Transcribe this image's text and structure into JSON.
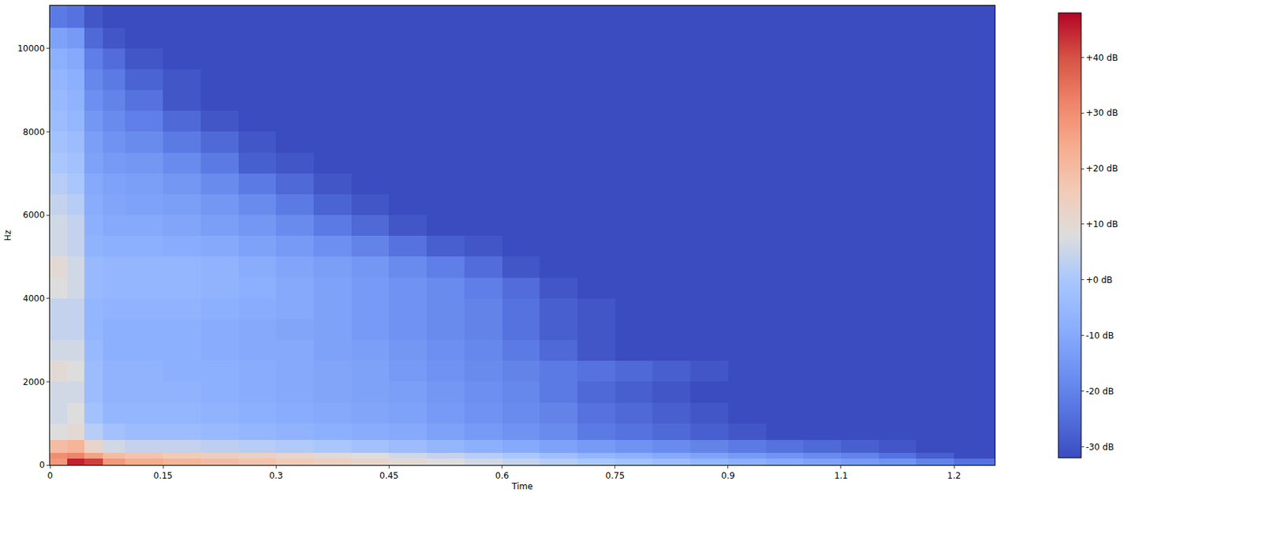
{
  "chart_data": {
    "type": "heatmap",
    "x_label": "Time",
    "y_label": "Hz",
    "xlim": [
      0,
      1.254
    ],
    "ylim": [
      0,
      11025
    ],
    "xticks": [
      0,
      0.15,
      0.3,
      0.45,
      0.6,
      0.75,
      0.9,
      {
        "value": 1.05,
        "label": "1.1"
      },
      1.2
    ],
    "yticks": [
      0,
      2000,
      4000,
      6000,
      8000,
      10000
    ],
    "time_edges": [
      0,
      0.023,
      0.046,
      0.07,
      0.1,
      0.15,
      0.2,
      0.25,
      0.3,
      0.35,
      0.4,
      0.45,
      0.5,
      0.55,
      0.6,
      0.65,
      0.7,
      0.75,
      0.8,
      0.85,
      0.9,
      0.95,
      1.0,
      1.05,
      1.1,
      1.15,
      1.2,
      1.254
    ],
    "freq_edges": [
      0,
      150,
      300,
      600,
      1000,
      1500,
      2000,
      2500,
      3000,
      3500,
      4000,
      4500,
      5000,
      5500,
      6000,
      6500,
      7000,
      7500,
      8000,
      8500,
      9000,
      9500,
      10000,
      10500,
      11025
    ],
    "cells": [
      [
        28,
        45,
        42,
        28,
        24,
        22,
        20,
        18,
        16,
        14,
        12,
        10,
        8,
        6,
        4,
        2,
        0,
        -2,
        -4,
        -6,
        -8,
        -10,
        -12,
        -14,
        -16,
        -20,
        -24
      ],
      [
        30,
        32,
        26,
        20,
        18,
        16,
        15,
        14,
        12,
        10,
        8,
        6,
        4,
        2,
        0,
        -3,
        -6,
        -8,
        -10,
        -12,
        -14,
        -16,
        -18,
        -20,
        -24,
        -28,
        -32
      ],
      [
        20,
        22,
        12,
        6,
        4,
        4,
        3,
        2,
        1,
        0,
        -2,
        -4,
        -6,
        -8,
        -10,
        -12,
        -14,
        -16,
        -18,
        -20,
        -22,
        -24,
        -26,
        -28,
        -30,
        -32,
        -32
      ],
      [
        8,
        10,
        2,
        -2,
        -4,
        -4,
        -5,
        -6,
        -7,
        -8,
        -9,
        -10,
        -12,
        -14,
        -16,
        -18,
        -22,
        -24,
        -26,
        -28,
        -30,
        -32,
        -32,
        -32,
        -32,
        -32,
        -32
      ],
      [
        6,
        8,
        -2,
        -6,
        -6,
        -6,
        -7,
        -8,
        -9,
        -10,
        -11,
        -12,
        -14,
        -16,
        -18,
        -20,
        -24,
        -26,
        -28,
        -30,
        -32,
        -32,
        -32,
        -32,
        -32,
        -32,
        -32
      ],
      [
        6,
        6,
        -4,
        -7,
        -7,
        -7,
        -8,
        -9,
        -10,
        -11,
        -12,
        -13,
        -15,
        -17,
        -19,
        -22,
        -26,
        -28,
        -30,
        -32,
        -32,
        -32,
        -32,
        -32,
        -32,
        -32,
        -32
      ],
      [
        10,
        8,
        -4,
        -7,
        -7,
        -8,
        -8,
        -9,
        -10,
        -11,
        -12,
        -14,
        -16,
        -18,
        -20,
        -22,
        -24,
        -26,
        -28,
        -30,
        -32,
        -32,
        -32,
        -32,
        -32,
        -32,
        -32
      ],
      [
        6,
        6,
        -5,
        -8,
        -8,
        -8,
        -9,
        -10,
        -10,
        -12,
        -13,
        -15,
        -17,
        -19,
        -22,
        -26,
        -30,
        -32,
        -32,
        -32,
        -32,
        -32,
        -32,
        -32,
        -32,
        -32,
        -32
      ],
      [
        4,
        4,
        -6,
        -8,
        -8,
        -8,
        -9,
        -10,
        -11,
        -12,
        -14,
        -16,
        -18,
        -20,
        -24,
        -28,
        -30,
        -32,
        -32,
        -32,
        -32,
        -32,
        -32,
        -32,
        -32,
        -32,
        -32
      ],
      [
        4,
        4,
        -6,
        -7,
        -7,
        -7,
        -8,
        -9,
        -10,
        -12,
        -14,
        -16,
        -18,
        -20,
        -24,
        -28,
        -30,
        -32,
        -32,
        -32,
        -32,
        -32,
        -32,
        -32,
        -32,
        -32,
        -32
      ],
      [
        8,
        6,
        -5,
        -6,
        -6,
        -6,
        -7,
        -8,
        -10,
        -12,
        -14,
        -16,
        -18,
        -21,
        -25,
        -30,
        -32,
        -32,
        -32,
        -32,
        -32,
        -32,
        -32,
        -32,
        -32,
        -32,
        -32
      ],
      [
        10,
        6,
        -5,
        -6,
        -6,
        -6,
        -7,
        -9,
        -11,
        -13,
        -15,
        -18,
        -21,
        -25,
        -30,
        -32,
        -32,
        -32,
        -32,
        -32,
        -32,
        -32,
        -32,
        -32,
        -32,
        -32,
        -32
      ],
      [
        6,
        4,
        -7,
        -8,
        -8,
        -9,
        -10,
        -12,
        -14,
        -17,
        -20,
        -24,
        -28,
        -30,
        -32,
        -32,
        -32,
        -32,
        -32,
        -32,
        -32,
        -32,
        -32,
        -32,
        -32,
        -32,
        -32
      ],
      [
        6,
        4,
        -8,
        -10,
        -10,
        -11,
        -13,
        -15,
        -18,
        -22,
        -26,
        -30,
        -32,
        -32,
        -32,
        -32,
        -32,
        -32,
        -32,
        -32,
        -32,
        -32,
        -32,
        -32,
        -32,
        -32,
        -32
      ],
      [
        4,
        2,
        -9,
        -11,
        -12,
        -13,
        -15,
        -18,
        -22,
        -27,
        -30,
        -32,
        -32,
        -32,
        -32,
        -32,
        -32,
        -32,
        -32,
        -32,
        -32,
        -32,
        -32,
        -32,
        -32,
        -32,
        -32
      ],
      [
        2,
        0,
        -10,
        -12,
        -13,
        -15,
        -18,
        -22,
        -26,
        -30,
        -32,
        -32,
        -32,
        -32,
        -32,
        -32,
        -32,
        -32,
        -32,
        -32,
        -32,
        -32,
        -32,
        -32,
        -32,
        -32,
        -32
      ],
      [
        0,
        -2,
        -12,
        -14,
        -15,
        -18,
        -22,
        -28,
        -30,
        -32,
        -32,
        -32,
        -32,
        -32,
        -32,
        -32,
        -32,
        -32,
        -32,
        -32,
        -32,
        -32,
        -32,
        -32,
        -32,
        -32,
        -32
      ],
      [
        -2,
        -4,
        -13,
        -16,
        -18,
        -22,
        -26,
        -30,
        -32,
        -32,
        -32,
        -32,
        -32,
        -32,
        -32,
        -32,
        -32,
        -32,
        -32,
        -32,
        -32,
        -32,
        -32,
        -32,
        -32,
        -32,
        -32
      ],
      [
        -4,
        -6,
        -15,
        -18,
        -21,
        -26,
        -30,
        -32,
        -32,
        -32,
        -32,
        -32,
        -32,
        -32,
        -32,
        -32,
        -32,
        -32,
        -32,
        -32,
        -32,
        -32,
        -32,
        -32,
        -32,
        -32,
        -32
      ],
      [
        -5,
        -7,
        -17,
        -20,
        -24,
        -30,
        -32,
        -32,
        -32,
        -32,
        -32,
        -32,
        -32,
        -32,
        -32,
        -32,
        -32,
        -32,
        -32,
        -32,
        -32,
        -32,
        -32,
        -32,
        -32,
        -32,
        -32
      ],
      [
        -6,
        -8,
        -19,
        -22,
        -27,
        -30,
        -32,
        -32,
        -32,
        -32,
        -32,
        -32,
        -32,
        -32,
        -32,
        -32,
        -32,
        -32,
        -32,
        -32,
        -32,
        -32,
        -32,
        -32,
        -32,
        -32,
        -32
      ],
      [
        -8,
        -10,
        -21,
        -25,
        -30,
        -32,
        -32,
        -32,
        -32,
        -32,
        -32,
        -32,
        -32,
        -32,
        -32,
        -32,
        -32,
        -32,
        -32,
        -32,
        -32,
        -32,
        -32,
        -32,
        -32,
        -32,
        -32
      ],
      [
        -12,
        -14,
        -26,
        -30,
        -32,
        -32,
        -32,
        -32,
        -32,
        -32,
        -32,
        -32,
        -32,
        -32,
        -32,
        -32,
        -32,
        -32,
        -32,
        -32,
        -32,
        -32,
        -32,
        -32,
        -32,
        -32,
        -32
      ],
      [
        -22,
        -24,
        -30,
        -32,
        -32,
        -32,
        -32,
        -32,
        -32,
        -32,
        -32,
        -32,
        -32,
        -32,
        -32,
        -32,
        -32,
        -32,
        -32,
        -32,
        -32,
        -32,
        -32,
        -32,
        -32,
        -32,
        -32
      ]
    ],
    "colorbar": {
      "range": [
        -32,
        48
      ],
      "ticks": [
        {
          "value": 40,
          "label": "+40 dB"
        },
        {
          "value": 30,
          "label": "+30 dB"
        },
        {
          "value": 20,
          "label": "+20 dB"
        },
        {
          "value": 10,
          "label": "+10 dB"
        },
        {
          "value": 0,
          "label": "+0 dB"
        },
        {
          "value": -10,
          "label": "-10 dB"
        },
        {
          "value": -20,
          "label": "-20 dB"
        },
        {
          "value": -30,
          "label": "-30 dB"
        }
      ]
    }
  }
}
